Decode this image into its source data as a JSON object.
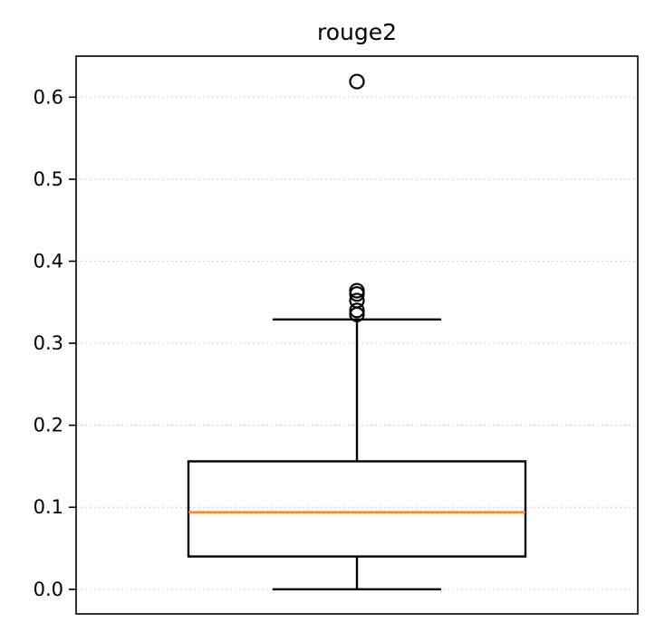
{
  "chart_data": {
    "type": "boxplot",
    "title": "rouge2",
    "xlabel": "",
    "ylabel": "",
    "ylim": [
      -0.03,
      0.65
    ],
    "yticks": [
      0.0,
      0.1,
      0.2,
      0.3,
      0.4,
      0.5,
      0.6
    ],
    "ytick_labels": [
      "0.0",
      "0.1",
      "0.2",
      "0.3",
      "0.4",
      "0.5",
      "0.6"
    ],
    "grid": "y-dotted",
    "boxes": [
      {
        "whisker_low": 0.0,
        "q1": 0.04,
        "median": 0.094,
        "q3": 0.156,
        "whisker_high": 0.329,
        "outliers": [
          0.335,
          0.34,
          0.352,
          0.36,
          0.364,
          0.619
        ]
      }
    ],
    "colors": {
      "box": "#000000",
      "median": "#ff7f0e",
      "grid": "#d3d3d3",
      "outlier": "#000000"
    }
  }
}
